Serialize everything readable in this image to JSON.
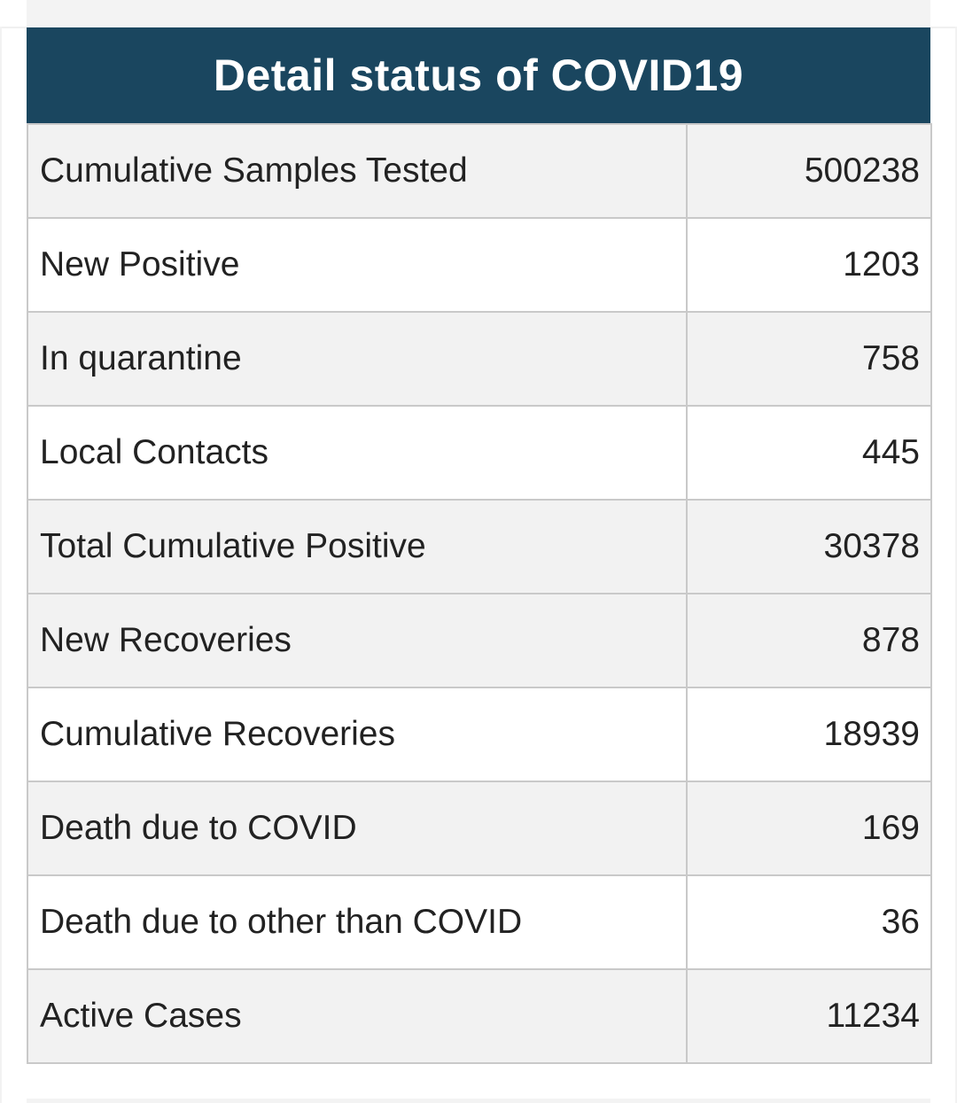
{
  "table": {
    "title": "Detail status of COVID19",
    "rows": [
      {
        "label": "Cumulative Samples Tested",
        "value": "500238"
      },
      {
        "label": "New Positive",
        "value": "1203"
      },
      {
        "label": "In quarantine",
        "value": "758"
      },
      {
        "label": "Local Contacts",
        "value": "445"
      },
      {
        "label": "Total Cumulative Positive",
        "value": "30378"
      },
      {
        "label": "New Recoveries",
        "value": "878"
      },
      {
        "label": "Cumulative Recoveries",
        "value": "18939"
      },
      {
        "label": "Death due to COVID",
        "value": "169"
      },
      {
        "label": "Death due to other than COVID",
        "value": "36"
      },
      {
        "label": "Active Cases",
        "value": "11234"
      }
    ]
  },
  "colors": {
    "header_bg": "#1a465f",
    "header_text": "#ffffff",
    "row_shaded": "#f2f2f2",
    "row_plain": "#ffffff",
    "border": "#c9c9c9"
  }
}
